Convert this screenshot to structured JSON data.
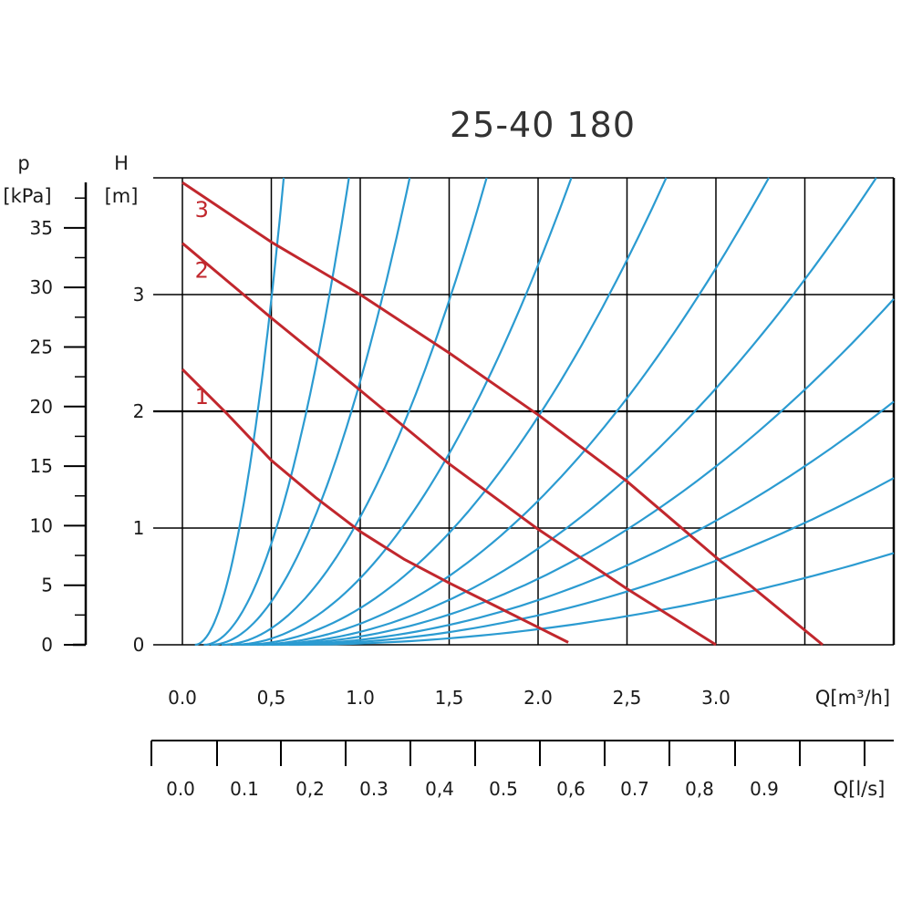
{
  "chart_data": {
    "type": "line",
    "title": "25-40 180",
    "y_axis_left": {
      "symbol": "p",
      "unit": "[kPa]",
      "ticks": [
        "35",
        "30",
        "25",
        "20",
        "15",
        "10",
        "5",
        "0"
      ],
      "tick_values": [
        35,
        30,
        25,
        20,
        15,
        10,
        5,
        0
      ],
      "range": [
        0,
        39.2
      ]
    },
    "y_axis": {
      "symbol": "H",
      "unit": "[m]",
      "ticks": [
        "3",
        "2",
        "1",
        "0"
      ],
      "tick_values": [
        3,
        2,
        1,
        0
      ],
      "range": [
        0,
        4
      ]
    },
    "x_axis": {
      "unit_label": "Q[m³/h]",
      "ticks": [
        "0.0",
        "0,5",
        "1.0",
        "1,5",
        "2.0",
        "2,5",
        "3.0"
      ],
      "tick_values": [
        0,
        0.5,
        1.0,
        1.5,
        2.0,
        2.5,
        3.0
      ],
      "range": [
        0,
        4
      ]
    },
    "x_axis_secondary": {
      "unit_label": "Q[l/s]",
      "ticks": [
        "0.0",
        "0.1",
        "0,2",
        "0.3",
        "0,4",
        "0.5",
        "0,6",
        "0.7",
        "0,8",
        "0.9"
      ],
      "tick_values": [
        0,
        0.1,
        0.2,
        0.3,
        0.4,
        0.5,
        0.6,
        0.7,
        0.8,
        0.9
      ]
    },
    "grid": true,
    "series": [
      {
        "name": "1",
        "color": "#c1272d",
        "x": [
          0.0,
          0.25,
          0.5,
          0.75,
          1.0,
          1.25,
          1.5,
          1.75,
          2.0,
          2.17
        ],
        "y": [
          2.36,
          1.98,
          1.58,
          1.26,
          0.97,
          0.73,
          0.53,
          0.34,
          0.15,
          0.02
        ]
      },
      {
        "name": "2",
        "color": "#c1272d",
        "x": [
          0.0,
          0.5,
          1.0,
          1.5,
          2.0,
          2.5,
          3.0
        ],
        "y": [
          3.44,
          2.8,
          2.18,
          1.55,
          0.99,
          0.48,
          0.0
        ]
      },
      {
        "name": "3",
        "color": "#c1272d",
        "x": [
          0.0,
          0.5,
          1.0,
          1.5,
          2.0,
          2.5,
          3.0,
          3.6
        ],
        "y": [
          3.96,
          3.45,
          3.0,
          2.5,
          1.97,
          1.4,
          0.75,
          0.0
        ]
      }
    ],
    "system_curves": {
      "color": "#2b9bd1",
      "count": 12,
      "start_q": [
        0.07,
        0.12,
        0.16,
        0.22,
        0.28,
        0.33,
        0.38,
        0.42,
        0.45,
        0.5,
        0.55,
        0.6
      ],
      "k": [
        16,
        6,
        3.2,
        1.8,
        1.1,
        0.7,
        0.47,
        0.33,
        0.235,
        0.17,
        0.12,
        0.068
      ]
    }
  }
}
